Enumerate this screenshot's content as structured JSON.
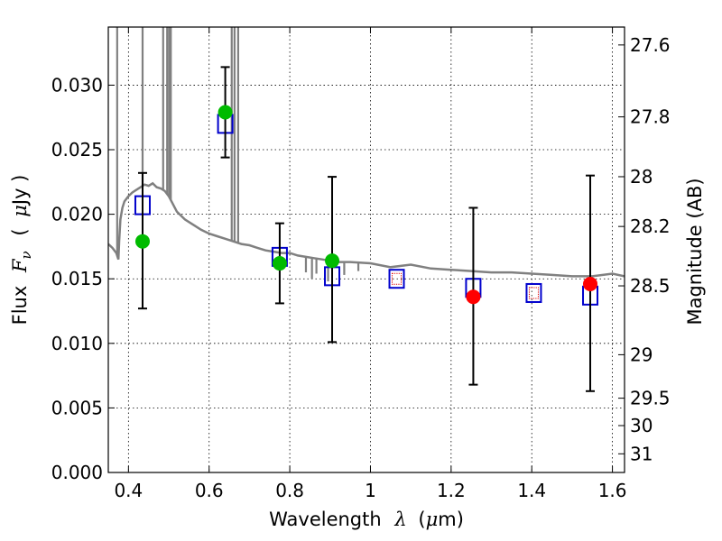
{
  "chart_data": {
    "type": "scatter",
    "xlabel": "Wavelength",
    "xlabel_symbol": "λ",
    "xlabel_unit_open": "(",
    "xlabel_unit_mu": "μ",
    "xlabel_unit_rest": "m)",
    "ylabel_prefix": "Flux",
    "ylabel_symbol": "F",
    "ylabel_subscript": "ν",
    "ylabel_unit_open": "(",
    "ylabel_unit_mu": "μ",
    "ylabel_unit_rest": "Jy )",
    "y2label": "Magnitude (AB)",
    "xlim": [
      0.35,
      1.63
    ],
    "ylim": [
      0.0,
      0.0345
    ],
    "xticks": [
      {
        "value": 0.4,
        "label": "0.4"
      },
      {
        "value": 0.6,
        "label": "0.6"
      },
      {
        "value": 0.8,
        "label": "0.8"
      },
      {
        "value": 1.0,
        "label": "1"
      },
      {
        "value": 1.2,
        "label": "1.2"
      },
      {
        "value": 1.4,
        "label": "1.4"
      },
      {
        "value": 1.6,
        "label": "1.6"
      }
    ],
    "yticks": [
      {
        "value": 0.0,
        "label": "0.000"
      },
      {
        "value": 0.005,
        "label": "0.005"
      },
      {
        "value": 0.01,
        "label": "0.010"
      },
      {
        "value": 0.015,
        "label": "0.015"
      },
      {
        "value": 0.02,
        "label": "0.020"
      },
      {
        "value": 0.025,
        "label": "0.025"
      },
      {
        "value": 0.03,
        "label": "0.030"
      }
    ],
    "mag_ticks": [
      {
        "value": 27.6,
        "label": "27.6"
      },
      {
        "value": 27.8,
        "label": "27.8"
      },
      {
        "value": 28.0,
        "label": "28"
      },
      {
        "value": 28.2,
        "label": "28.2"
      },
      {
        "value": 28.5,
        "label": "28.5"
      },
      {
        "value": 29.0,
        "label": "29"
      },
      {
        "value": 29.5,
        "label": "29.5"
      },
      {
        "value": 30.0,
        "label": "30"
      },
      {
        "value": 31.0,
        "label": "31"
      }
    ],
    "grid": true,
    "series": [
      {
        "name": "model spectrum",
        "kind": "line",
        "color": "#808080",
        "x": [
          0.35,
          0.36,
          0.37,
          0.375,
          0.377,
          0.38,
          0.385,
          0.39,
          0.4,
          0.41,
          0.42,
          0.43,
          0.44,
          0.45,
          0.46,
          0.47,
          0.48,
          0.49,
          0.5,
          0.52,
          0.54,
          0.56,
          0.58,
          0.6,
          0.62,
          0.64,
          0.66,
          0.68,
          0.7,
          0.72,
          0.74,
          0.76,
          0.78,
          0.8,
          0.82,
          0.84,
          0.86,
          0.88,
          0.9,
          0.92,
          0.95,
          1.0,
          1.05,
          1.1,
          1.15,
          1.2,
          1.25,
          1.3,
          1.35,
          1.4,
          1.45,
          1.5,
          1.55,
          1.6,
          1.63
        ],
        "y": [
          0.0177,
          0.0174,
          0.017,
          0.0165,
          0.018,
          0.0196,
          0.0205,
          0.021,
          0.0214,
          0.0217,
          0.0219,
          0.0221,
          0.0223,
          0.0222,
          0.0224,
          0.0221,
          0.022,
          0.0218,
          0.0214,
          0.0202,
          0.0196,
          0.0192,
          0.0188,
          0.0185,
          0.0183,
          0.0181,
          0.0179,
          0.0177,
          0.0176,
          0.0174,
          0.0172,
          0.0171,
          0.017,
          0.017,
          0.0168,
          0.0167,
          0.0166,
          0.0165,
          0.0164,
          0.0163,
          0.0163,
          0.0162,
          0.0159,
          0.0161,
          0.0158,
          0.0157,
          0.0156,
          0.0155,
          0.0155,
          0.0154,
          0.0153,
          0.0152,
          0.0152,
          0.0154,
          0.0152
        ]
      },
      {
        "name": "emission lines",
        "kind": "spikes",
        "color": "#808080",
        "lines": [
          {
            "x": 0.372,
            "ytop": 0.0345
          },
          {
            "x": 0.435,
            "ytop": 0.0345
          },
          {
            "x": 0.486,
            "ytop": 0.0345
          },
          {
            "x": 0.496,
            "ytop": 0.0345
          },
          {
            "x": 0.501,
            "ytop": 0.0345
          },
          {
            "x": 0.505,
            "ytop": 0.0345
          },
          {
            "x": 0.656,
            "ytop": 0.0345
          },
          {
            "x": 0.663,
            "ytop": 0.0345
          },
          {
            "x": 0.672,
            "ytop": 0.0345
          }
        ]
      },
      {
        "name": "absorption features",
        "kind": "dips",
        "color": "#808080",
        "features": [
          {
            "x": 0.84,
            "y": 0.0155
          },
          {
            "x": 0.855,
            "y": 0.015
          },
          {
            "x": 0.866,
            "y": 0.0154
          },
          {
            "x": 0.895,
            "y": 0.0148
          },
          {
            "x": 0.935,
            "y": 0.0153
          },
          {
            "x": 0.97,
            "y": 0.0156
          }
        ]
      },
      {
        "name": "model photometry",
        "kind": "open-squares",
        "color": "#0000cc",
        "x": [
          0.435,
          0.64,
          0.775,
          0.905,
          1.065,
          1.255,
          1.405,
          1.545
        ],
        "y": [
          0.0207,
          0.027,
          0.0167,
          0.0152,
          0.015,
          0.0143,
          0.0139,
          0.0137
        ]
      },
      {
        "name": "observed (green)",
        "kind": "filled-circles",
        "color": "#00bb00",
        "x": [
          0.435,
          0.64,
          0.775,
          0.905
        ],
        "y": [
          0.0179,
          0.0279,
          0.0162,
          0.0164
        ],
        "err": [
          [
            0.0127,
            0.0232
          ],
          [
            0.0244,
            0.0314
          ],
          [
            0.0131,
            0.0193
          ],
          [
            0.0101,
            0.0229
          ]
        ]
      },
      {
        "name": "observed (red)",
        "kind": "filled-circles",
        "color": "#ff0000",
        "x": [
          1.255,
          1.545
        ],
        "y": [
          0.0136,
          0.0146
        ],
        "err": [
          [
            0.0068,
            0.0205
          ],
          [
            0.0063,
            0.023
          ]
        ]
      },
      {
        "name": "small red squares",
        "kind": "small-open-squares",
        "color": "#dd0000",
        "x": [
          1.065,
          1.405
        ],
        "y": [
          0.015,
          0.0139
        ]
      }
    ]
  }
}
